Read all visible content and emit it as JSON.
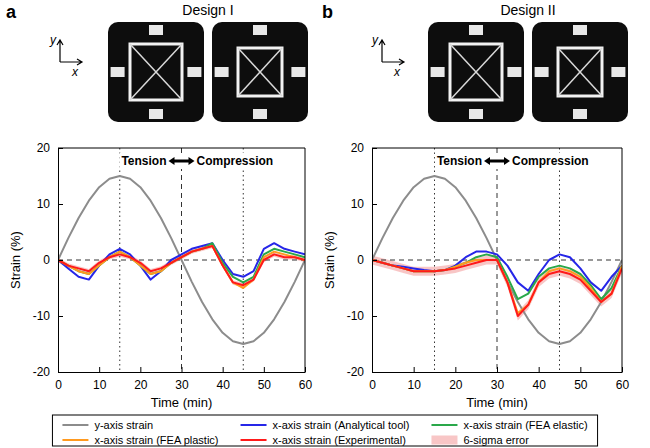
{
  "chart_data": [
    {
      "type": "line",
      "panel": "a",
      "title": "Design I",
      "photo_axis_labels": [
        "y",
        "x"
      ],
      "x_label": "Time (min)",
      "y_label": "Strain (%)",
      "x": [
        0,
        2.5,
        5,
        7.5,
        10,
        12.5,
        15,
        17.5,
        20,
        22.5,
        25,
        27.5,
        30,
        32.5,
        35,
        37.5,
        40,
        42.5,
        45,
        47.5,
        50,
        52.5,
        55,
        57.5,
        60
      ],
      "xlim": [
        0,
        60
      ],
      "xticks": [
        0,
        10,
        20,
        30,
        40,
        50,
        60
      ],
      "ylim": [
        -20,
        20
      ],
      "yticks": [
        -20,
        -10,
        0,
        10,
        20
      ],
      "grid": false,
      "legend": "bottom",
      "vlines": [
        {
          "x": 15,
          "line_style": "dotted"
        },
        {
          "x": 30,
          "line_style": "dashed"
        },
        {
          "x": 45,
          "line_style": "dotted"
        }
      ],
      "hlines": [
        {
          "y": 0,
          "line_style": "dashed"
        }
      ],
      "annotations": [
        {
          "text": "Tension"
        },
        {
          "text": "Compression"
        }
      ],
      "series": [
        {
          "name": "y-axis strain",
          "type": "line",
          "line_style": "solid",
          "color": "#8c8c8c",
          "values": [
            0,
            3.9,
            7.5,
            10.6,
            13,
            14.5,
            15,
            14.5,
            13,
            10.6,
            7.5,
            3.9,
            0,
            -3.9,
            -7.5,
            -10.6,
            -13,
            -14.5,
            -15,
            -14.5,
            -13,
            -10.6,
            -7.5,
            -3.9,
            0
          ]
        },
        {
          "name": "x-axis strain (Analytical tool)",
          "type": "line",
          "line_style": "solid",
          "color": "#2626e8",
          "values": [
            0,
            -1.5,
            -3,
            -3.5,
            -1,
            1,
            2,
            1,
            -1,
            -3.5,
            -2,
            0,
            1,
            2,
            2.5,
            3,
            0,
            -2.5,
            -3,
            -2,
            2,
            3,
            2,
            1.5,
            1
          ]
        },
        {
          "name": "x-axis strain (FEA elastic)",
          "type": "line",
          "line_style": "solid",
          "color": "#2aa84a",
          "values": [
            0,
            -1,
            -2,
            -2.5,
            -1,
            0.5,
            1.5,
            0.5,
            -1,
            -2.5,
            -2,
            -0.5,
            0.5,
            1.5,
            2,
            3,
            -0.5,
            -3,
            -4,
            -3,
            1,
            2,
            1.5,
            1,
            0.5
          ]
        },
        {
          "name": "x-axis strain (FEA plastic)",
          "type": "line",
          "line_style": "solid",
          "color": "#ff9a1f",
          "values": [
            0,
            -1,
            -2,
            -2.5,
            -1,
            0.5,
            1.5,
            0.5,
            -1,
            -2.5,
            -2,
            -0.5,
            0.5,
            1.5,
            2,
            2.5,
            -1,
            -4,
            -5,
            -3.5,
            0.5,
            1.5,
            1,
            0.5,
            0
          ]
        },
        {
          "name": "x-axis strain (Experimental)",
          "type": "line",
          "line_style": "solid",
          "color": "#ff1a1a",
          "values": [
            0,
            -1,
            -1.5,
            -2,
            -0.5,
            0.5,
            1,
            0.5,
            -0.5,
            -2,
            -1.5,
            -0.5,
            0.5,
            1.5,
            2,
            2.5,
            -1,
            -4,
            -4.5,
            -3.5,
            0,
            1,
            0.5,
            0.5,
            0
          ]
        },
        {
          "name": "6-sigma error",
          "type": "band",
          "color": "#f6b3b3",
          "upper": [
            0.4,
            -0.6,
            -1.1,
            -1.6,
            -0.1,
            0.9,
            1.4,
            0.9,
            -0.1,
            -1.6,
            -1.1,
            -0.1,
            0.9,
            1.9,
            2.4,
            2.9,
            -0.6,
            -3.6,
            -4.1,
            -3.1,
            0.4,
            1.4,
            0.9,
            0.9,
            0.4
          ],
          "lower": [
            -0.4,
            -1.4,
            -1.9,
            -2.4,
            -0.9,
            0.1,
            0.6,
            0.1,
            -0.9,
            -2.4,
            -1.9,
            -0.9,
            0.1,
            1.1,
            1.6,
            2.1,
            -1.4,
            -4.4,
            -4.9,
            -3.9,
            -0.4,
            0.6,
            0.1,
            0.1,
            -0.4
          ]
        }
      ]
    },
    {
      "type": "line",
      "panel": "b",
      "title": "Design II",
      "photo_axis_labels": [
        "y",
        "x"
      ],
      "x_label": "Time (min)",
      "y_label": "Strain (%)",
      "x": [
        0,
        2.5,
        5,
        7.5,
        10,
        12.5,
        15,
        17.5,
        20,
        22.5,
        25,
        27.5,
        30,
        32.5,
        35,
        37.5,
        40,
        42.5,
        45,
        47.5,
        50,
        52.5,
        55,
        57.5,
        60
      ],
      "xlim": [
        0,
        60
      ],
      "xticks": [
        0,
        10,
        20,
        30,
        40,
        50,
        60
      ],
      "ylim": [
        -20,
        20
      ],
      "yticks": [
        -20,
        -10,
        0,
        10,
        20
      ],
      "grid": false,
      "vlines": [
        {
          "x": 15,
          "line_style": "dotted"
        },
        {
          "x": 30,
          "line_style": "dashed"
        },
        {
          "x": 45,
          "line_style": "dotted"
        }
      ],
      "hlines": [
        {
          "y": 0,
          "line_style": "dashed"
        }
      ],
      "annotations": [
        {
          "text": "Tension"
        },
        {
          "text": "Compression"
        }
      ],
      "series": [
        {
          "name": "y-axis strain",
          "type": "line",
          "line_style": "solid",
          "color": "#8c8c8c",
          "values": [
            0,
            3.9,
            7.5,
            10.6,
            13,
            14.5,
            15,
            14.5,
            13,
            10.6,
            7.5,
            3.9,
            0,
            -3.9,
            -7.5,
            -10.6,
            -13,
            -14.5,
            -15,
            -14.5,
            -13,
            -10.6,
            -7.5,
            -3.9,
            0
          ]
        },
        {
          "name": "x-axis strain (Analytical tool)",
          "type": "line",
          "line_style": "solid",
          "color": "#2626e8",
          "values": [
            0,
            -0.5,
            -1,
            -1.2,
            -1.5,
            -1.8,
            -2,
            -1.8,
            -1,
            0.5,
            1.5,
            1.5,
            1,
            -1,
            -4,
            -5.5,
            -2.5,
            0,
            1,
            0.5,
            -1.5,
            -4,
            -5.5,
            -3,
            -1
          ]
        },
        {
          "name": "x-axis strain (FEA elastic)",
          "type": "line",
          "line_style": "solid",
          "color": "#2aa84a",
          "values": [
            0,
            -0.5,
            -1,
            -1.5,
            -2,
            -2,
            -2,
            -1.8,
            -1.2,
            -0.5,
            0.5,
            1,
            0.5,
            -3,
            -7,
            -6,
            -3,
            -1.5,
            -1,
            -1.5,
            -2.5,
            -4.5,
            -7,
            -5,
            -1
          ]
        },
        {
          "name": "x-axis strain (FEA plastic)",
          "type": "line",
          "line_style": "solid",
          "color": "#ff9a1f",
          "values": [
            0,
            -0.5,
            -1,
            -1.5,
            -2,
            -2,
            -2,
            -1.8,
            -1.2,
            -0.5,
            0,
            0,
            0,
            -4,
            -9.5,
            -8,
            -4,
            -2,
            -1.5,
            -2,
            -3,
            -5,
            -7.5,
            -6,
            -1
          ]
        },
        {
          "name": "x-axis strain (Experimental)",
          "type": "line",
          "line_style": "solid",
          "color": "#ff1a1a",
          "values": [
            0,
            -0.5,
            -1,
            -1.5,
            -2,
            -2,
            -2,
            -1.8,
            -1.5,
            -1,
            -0.5,
            0,
            0,
            -4,
            -10,
            -8,
            -4,
            -2.5,
            -2,
            -2.5,
            -3.5,
            -5.5,
            -7.5,
            -6,
            -1.5
          ]
        },
        {
          "name": "6-sigma error",
          "type": "band",
          "color": "#f6b3b3",
          "upper": [
            0.8,
            0.3,
            -0.2,
            -0.7,
            -1.2,
            -1.2,
            -1.2,
            -1,
            -0.7,
            -0.2,
            0.3,
            0.8,
            0.8,
            -3.2,
            -9.2,
            -7.2,
            -3.2,
            -1.7,
            -1.2,
            -1.7,
            -2.7,
            -4.7,
            -6.7,
            -5.2,
            -0.7
          ],
          "lower": [
            -0.8,
            -1.3,
            -1.8,
            -2.3,
            -2.8,
            -2.8,
            -2.8,
            -2.6,
            -2.3,
            -1.8,
            -1.3,
            -0.8,
            -0.8,
            -4.8,
            -10.8,
            -8.8,
            -4.8,
            -3.3,
            -2.8,
            -3.3,
            -4.3,
            -6.3,
            -8.3,
            -6.8,
            -2.3
          ]
        }
      ]
    }
  ]
}
